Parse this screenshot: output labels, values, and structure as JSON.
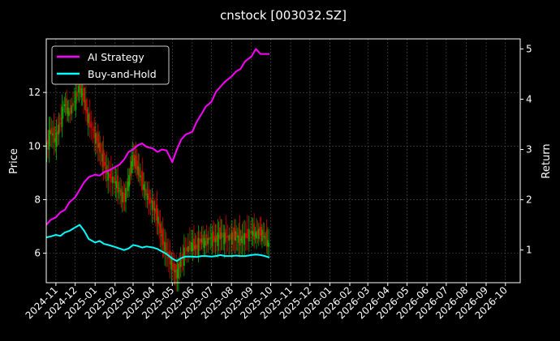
{
  "chart_data": {
    "type": "line",
    "title": "cnstock [003032.SZ]",
    "xlabel": "",
    "ylabel": "Price",
    "ylabel_right": "Return",
    "x_tick_labels": [
      "2024-11",
      "2024-12",
      "2025-01",
      "2025-02",
      "2025-03",
      "2025-04",
      "2025-05",
      "2025-06",
      "2025-07",
      "2025-08",
      "2025-09",
      "2025-10",
      "2025-11",
      "2025-12",
      "2026-01",
      "2026-02",
      "2026-03",
      "2026-04",
      "2026-05",
      "2026-06",
      "2026-07",
      "2026-08",
      "2026-09",
      "2026-10"
    ],
    "xlim": [
      "2024-10-17",
      "2026-10-24"
    ],
    "ylim": [
      4.9,
      14.0
    ],
    "y_ticks": [
      6,
      8,
      10,
      12
    ],
    "ylim_right": [
      0.35,
      5.2
    ],
    "y_ticks_right": [
      1,
      2,
      3,
      4,
      5
    ],
    "grid": true,
    "legend_position": "top-left",
    "price_series": {
      "name": "",
      "style": "candlestick",
      "up_color": "#00aa00",
      "down_color": "#dd0000",
      "dates": [
        "2024-10-17",
        "2024-10-24",
        "2024-11-01",
        "2024-11-08",
        "2024-11-15",
        "2024-11-22",
        "2024-12-01",
        "2024-12-08",
        "2024-12-15",
        "2024-12-22",
        "2025-01-01",
        "2025-01-08",
        "2025-01-15",
        "2025-01-22",
        "2025-02-01",
        "2025-02-08",
        "2025-02-15",
        "2025-02-22",
        "2025-03-01",
        "2025-03-08",
        "2025-03-15",
        "2025-03-22",
        "2025-04-01",
        "2025-04-08",
        "2025-04-15",
        "2025-04-22",
        "2025-05-01",
        "2025-05-08",
        "2025-05-15",
        "2025-05-22",
        "2025-06-01",
        "2025-06-08",
        "2025-06-15",
        "2025-06-22",
        "2025-07-01",
        "2025-07-08",
        "2025-07-15",
        "2025-07-22",
        "2025-08-01",
        "2025-08-08",
        "2025-08-15",
        "2025-08-22",
        "2025-09-01",
        "2025-09-08",
        "2025-09-15",
        "2025-09-22",
        "2025-09-29"
      ],
      "values": [
        9.8,
        10.6,
        10.2,
        10.9,
        11.6,
        11.2,
        11.7,
        12.2,
        11.8,
        11.0,
        10.4,
        10.0,
        9.4,
        8.9,
        8.7,
        8.4,
        8.0,
        8.6,
        9.6,
        9.2,
        8.7,
        8.2,
        7.8,
        7.4,
        6.6,
        6.1,
        5.6,
        5.2,
        5.7,
        6.1,
        6.3,
        6.2,
        6.5,
        6.4,
        6.6,
        6.5,
        6.7,
        6.6,
        6.6,
        6.7,
        6.5,
        6.6,
        6.8,
        6.7,
        6.8,
        6.6,
        6.3
      ]
    },
    "series": [
      {
        "name": "AI Strategy",
        "color": "#ff00ff",
        "axis": "right",
        "dates": [
          "2024-10-17",
          "2024-10-24",
          "2024-11-01",
          "2024-11-08",
          "2024-11-15",
          "2024-11-22",
          "2024-12-01",
          "2024-12-08",
          "2024-12-15",
          "2024-12-22",
          "2025-01-01",
          "2025-01-08",
          "2025-01-15",
          "2025-01-22",
          "2025-02-01",
          "2025-02-08",
          "2025-02-15",
          "2025-02-22",
          "2025-03-01",
          "2025-03-08",
          "2025-03-15",
          "2025-03-22",
          "2025-04-01",
          "2025-04-08",
          "2025-04-15",
          "2025-04-22",
          "2025-05-01",
          "2025-05-08",
          "2025-05-15",
          "2025-05-22",
          "2025-06-01",
          "2025-06-08",
          "2025-06-15",
          "2025-06-22",
          "2025-07-01",
          "2025-07-08",
          "2025-07-15",
          "2025-07-22",
          "2025-08-01",
          "2025-08-08",
          "2025-08-15",
          "2025-08-22",
          "2025-09-01",
          "2025-09-08",
          "2025-09-15",
          "2025-09-22",
          "2025-09-29"
        ],
        "values": [
          1.5,
          1.6,
          1.65,
          1.75,
          1.8,
          1.95,
          2.05,
          2.2,
          2.35,
          2.45,
          2.5,
          2.48,
          2.55,
          2.58,
          2.65,
          2.7,
          2.8,
          2.95,
          3.0,
          3.08,
          3.12,
          3.05,
          3.02,
          2.95,
          3.0,
          2.98,
          2.75,
          3.0,
          3.2,
          3.3,
          3.35,
          3.55,
          3.7,
          3.85,
          3.95,
          4.15,
          4.25,
          4.35,
          4.45,
          4.55,
          4.6,
          4.75,
          4.85,
          5.0,
          4.9,
          4.9,
          4.9
        ]
      },
      {
        "name": "Buy-and-Hold",
        "color": "#00ffff",
        "axis": "right",
        "dates": [
          "2024-10-17",
          "2024-10-24",
          "2024-11-01",
          "2024-11-08",
          "2024-11-15",
          "2024-11-22",
          "2024-12-01",
          "2024-12-08",
          "2024-12-15",
          "2024-12-22",
          "2025-01-01",
          "2025-01-08",
          "2025-01-15",
          "2025-01-22",
          "2025-02-01",
          "2025-02-08",
          "2025-02-15",
          "2025-02-22",
          "2025-03-01",
          "2025-03-08",
          "2025-03-15",
          "2025-03-22",
          "2025-04-01",
          "2025-04-08",
          "2025-04-15",
          "2025-04-22",
          "2025-05-01",
          "2025-05-08",
          "2025-05-15",
          "2025-05-22",
          "2025-06-01",
          "2025-06-08",
          "2025-06-15",
          "2025-06-22",
          "2025-07-01",
          "2025-07-08",
          "2025-07-15",
          "2025-07-22",
          "2025-08-01",
          "2025-08-08",
          "2025-08-15",
          "2025-08-22",
          "2025-09-01",
          "2025-09-08",
          "2025-09-15",
          "2025-09-22",
          "2025-09-29"
        ],
        "values": [
          1.25,
          1.27,
          1.3,
          1.28,
          1.35,
          1.38,
          1.45,
          1.5,
          1.38,
          1.22,
          1.15,
          1.18,
          1.12,
          1.1,
          1.06,
          1.03,
          1.0,
          1.03,
          1.1,
          1.08,
          1.05,
          1.07,
          1.05,
          1.02,
          0.97,
          0.92,
          0.83,
          0.78,
          0.84,
          0.87,
          0.87,
          0.86,
          0.88,
          0.88,
          0.87,
          0.88,
          0.9,
          0.88,
          0.88,
          0.89,
          0.88,
          0.88,
          0.9,
          0.91,
          0.9,
          0.88,
          0.85
        ]
      }
    ]
  }
}
